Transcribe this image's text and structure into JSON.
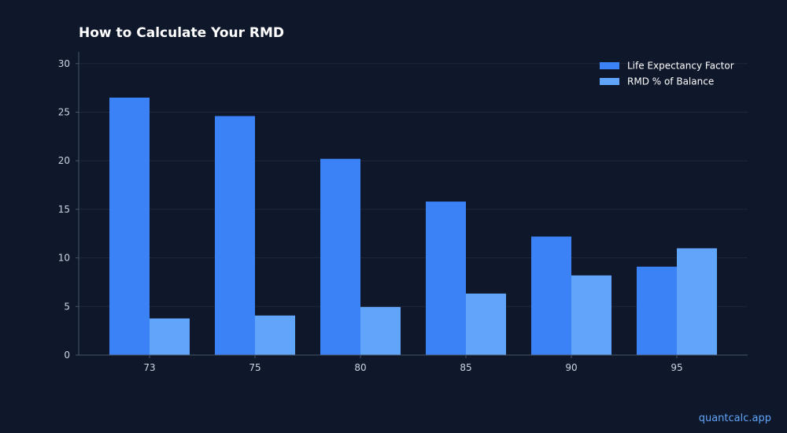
{
  "chart_data": {
    "type": "bar",
    "title": "How to Calculate Your RMD",
    "xlabel": "",
    "ylabel": "",
    "categories": [
      "73",
      "75",
      "80",
      "85",
      "90",
      "95"
    ],
    "series": [
      {
        "name": "Life Expectancy Factor",
        "values": [
          26.5,
          24.6,
          20.2,
          15.8,
          12.2,
          9.1
        ],
        "color": "#3b82f6"
      },
      {
        "name": "RMD % of Balance",
        "values": [
          3.77,
          4.07,
          4.95,
          6.33,
          8.2,
          10.99
        ],
        "color": "#60a5fa"
      }
    ],
    "ylim": [
      0,
      31.2
    ],
    "yticks": [
      0,
      5,
      10,
      15,
      20,
      25,
      30
    ],
    "grid": true,
    "legend_position": "top-right"
  },
  "watermark": "quantcalc.app",
  "colors": {
    "background": "#0f172a",
    "axis": "#475569",
    "grid": "#1e293b",
    "tick_text": "#cbd5e1",
    "title_text": "#ffffff"
  }
}
